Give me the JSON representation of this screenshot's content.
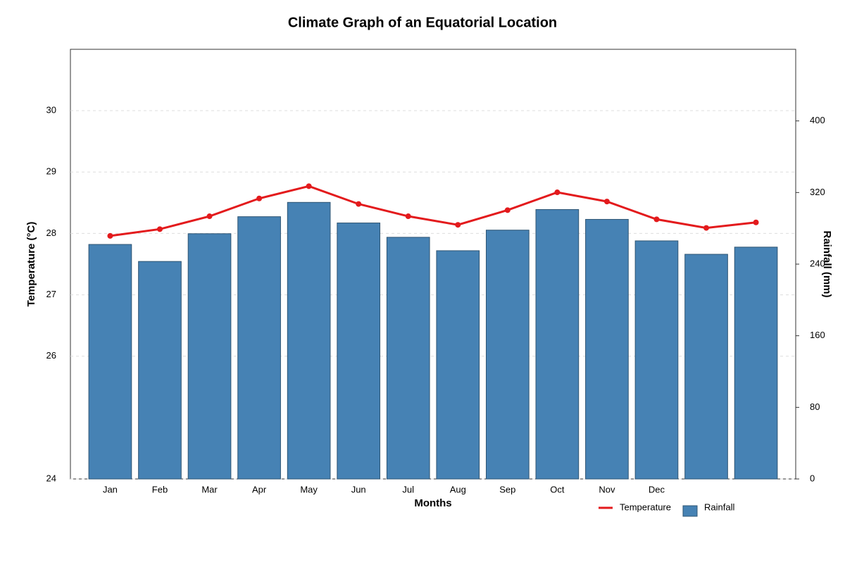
{
  "chart_data": {
    "type": "bar_line",
    "title": "Climate Graph of an Equatorial Location",
    "xlabel": "Months",
    "ylabel": "Temperature (°C)",
    "y2label": "Rainfall (mm)",
    "categories": [
      "Jan",
      "Feb",
      "Mar",
      "Apr",
      "May",
      "Jun",
      "Jul",
      "Aug",
      "Sep",
      "Oct",
      "Nov",
      "Dec",
      null,
      null
    ],
    "series": [
      {
        "name": "Rainfall",
        "type": "bar",
        "axis": "y2",
        "color": "#4682b4",
        "values": [
          262,
          243,
          274,
          293,
          309,
          286,
          270,
          255,
          278,
          301,
          290,
          266,
          251,
          259
        ]
      },
      {
        "name": "Temperature",
        "type": "line",
        "axis": "y",
        "color": "#e31a1c",
        "values": [
          27.96,
          28.07,
          28.28,
          28.57,
          28.77,
          28.48,
          28.28,
          28.14,
          28.38,
          28.67,
          28.52,
          28.23,
          28.09,
          28.18
        ]
      }
    ],
    "ylim": [
      24,
      31
    ],
    "yticks": [
      24,
      26,
      27,
      28,
      29,
      30
    ],
    "y2lim": [
      0,
      480
    ],
    "y2ticks": [
      0,
      80,
      160,
      240,
      320,
      400
    ],
    "grid": true,
    "legend": "bottom-right"
  }
}
